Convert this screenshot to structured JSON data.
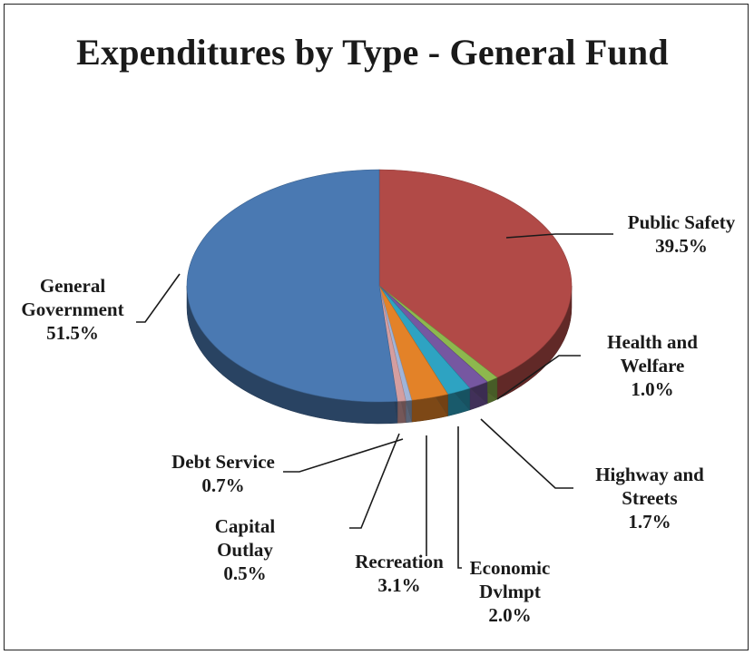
{
  "chart_data": {
    "type": "pie",
    "title": "Expenditures by Type - General Fund",
    "slices": [
      {
        "label_lines": [
          "Public Safety"
        ],
        "value": 39.5,
        "value_label": "39.5%",
        "color": "#b14a47"
      },
      {
        "label_lines": [
          "Health and",
          "Welfare"
        ],
        "value": 1.0,
        "value_label": "1.0%",
        "color": "#8db84e"
      },
      {
        "label_lines": [
          "Highway and",
          "Streets"
        ],
        "value": 1.7,
        "value_label": "1.7%",
        "color": "#7657a1"
      },
      {
        "label_lines": [
          "Economic",
          "Dvlmpt"
        ],
        "value": 2.0,
        "value_label": "2.0%",
        "color": "#2ea3c2"
      },
      {
        "label_lines": [
          "Recreation"
        ],
        "value": 3.1,
        "value_label": "3.1%",
        "color": "#e38228"
      },
      {
        "label_lines": [
          "Capital",
          "Outlay"
        ],
        "value": 0.5,
        "value_label": "0.5%",
        "color": "#a0b4d8"
      },
      {
        "label_lines": [
          "Debt Service"
        ],
        "value": 0.7,
        "value_label": "0.7%",
        "color": "#d49ea0"
      },
      {
        "label_lines": [
          "General",
          "Government"
        ],
        "value": 51.5,
        "value_label": "51.5%",
        "color": "#4a79b2"
      }
    ],
    "legend": "none"
  }
}
